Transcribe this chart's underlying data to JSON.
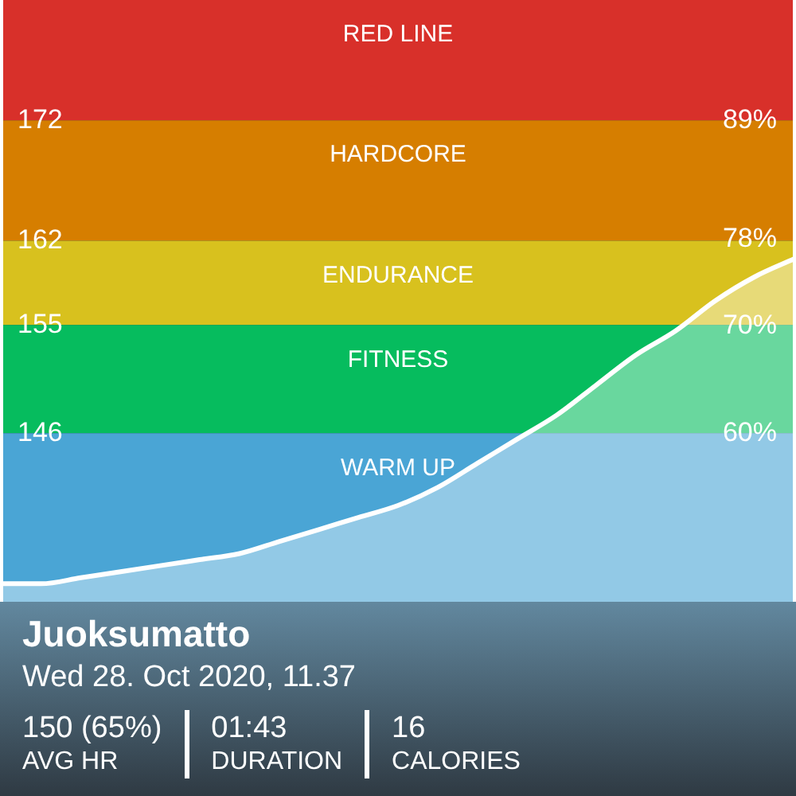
{
  "chart_data": {
    "type": "area",
    "title": "Juoksumatto",
    "subtitle": "Wed 28. Oct 2020, 11.37",
    "annotations": [
      "150 (65%)",
      "AVG HR",
      "01:43",
      "DURATION",
      "16",
      "CALORIES"
    ],
    "categories": [
      null,
      null,
      null,
      null,
      null,
      null,
      null,
      null,
      null,
      null,
      null,
      null,
      null,
      null,
      null,
      null,
      null,
      null,
      null,
      null,
      null
    ],
    "series": [
      {
        "color": "#ffffff",
        "values": [
          133.5,
          133.5,
          134,
          134.5,
          135,
          135.5,
          136,
          137,
          138,
          139,
          140,
          141.5,
          143.5,
          145.5,
          147.5,
          150,
          152.5,
          154.5,
          157,
          159,
          160.5
        ]
      }
    ],
    "ylim": [
      132,
      182
    ],
    "yticks": [
      146,
      155,
      162,
      172
    ],
    "y2lim": [
      44.4,
      100.2
    ],
    "y2ticks": [
      {
        "value": 60,
        "label": "60%"
      },
      {
        "value": 70,
        "label": "70%"
      },
      {
        "value": 78,
        "label": "78%"
      },
      {
        "value": 89,
        "label": "89%"
      }
    ],
    "bands": [
      {
        "axis": "y",
        "from": 172,
        "to": 182,
        "label": "RED LINE",
        "color": "#d8302a"
      },
      {
        "axis": "y",
        "from": 162,
        "to": 172,
        "label": "HARDCORE",
        "color": "#d67e00"
      },
      {
        "axis": "y",
        "from": 155,
        "to": 162,
        "label": "ENDURANCE",
        "color": "#d8c11e"
      },
      {
        "axis": "y",
        "from": 146,
        "to": 155,
        "label": "FITNESS",
        "color": "#06bc5e"
      },
      {
        "axis": "y",
        "from": 132,
        "to": 146,
        "label": "WARM UP",
        "color": "#4aa5d5"
      }
    ]
  }
}
